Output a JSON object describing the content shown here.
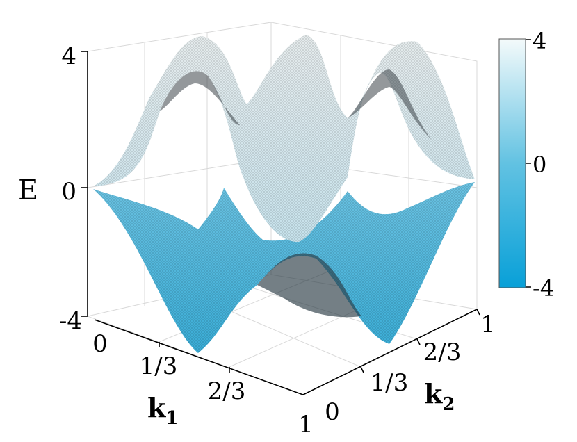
{
  "chart_data": {
    "type": "surface-3d",
    "zlabel": "E",
    "x_axis": {
      "label_main": "k",
      "label_sub": "1",
      "ticks": [
        "0",
        "1/3",
        "2/3",
        "1"
      ]
    },
    "y_axis": {
      "label_main": "k",
      "label_sub": "2",
      "ticks": [
        "0",
        "1/3",
        "2/3",
        "1"
      ]
    },
    "z_axis": {
      "ticks": [
        "-4",
        "0",
        "4"
      ],
      "range": [
        -4,
        4
      ]
    },
    "colorbar": {
      "ticks": [
        "4",
        "0",
        "-4"
      ],
      "range": [
        -4,
        4
      ],
      "colors": [
        "#eef6f8",
        "#5fc0e0",
        "#0aa0d8"
      ]
    },
    "series": [
      {
        "band": "upper",
        "E_max": 4,
        "E_min": 0
      },
      {
        "band": "lower",
        "E_max": 0,
        "E_min": -4
      }
    ],
    "grid": true
  }
}
